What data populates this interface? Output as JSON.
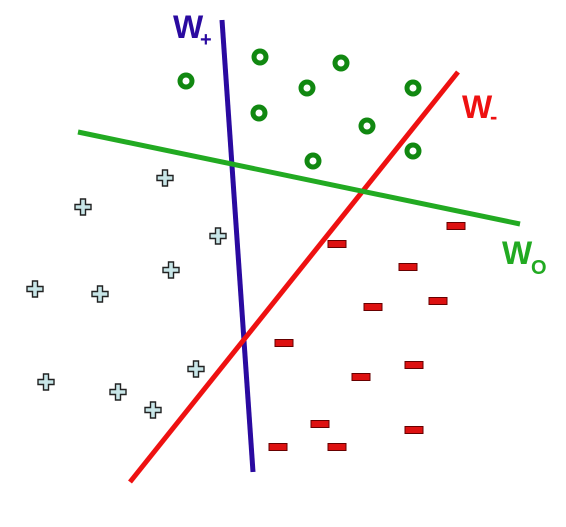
{
  "lines": {
    "w_plus": {
      "label": "W",
      "sub": "+",
      "color": "#2a0aa0"
    },
    "w_minus": {
      "label": "W",
      "sub": "-",
      "color": "#ee1111"
    },
    "w_zero": {
      "label": "W",
      "sub": "O",
      "color": "#22aa22"
    }
  },
  "markers": {
    "circle_fill": "#118811",
    "circle_inner": "#ffffff",
    "plus_fill": "#c8e6e8",
    "plus_stroke": "#222222",
    "minus_fill": "#dd1111",
    "minus_stroke": "#660000"
  }
}
